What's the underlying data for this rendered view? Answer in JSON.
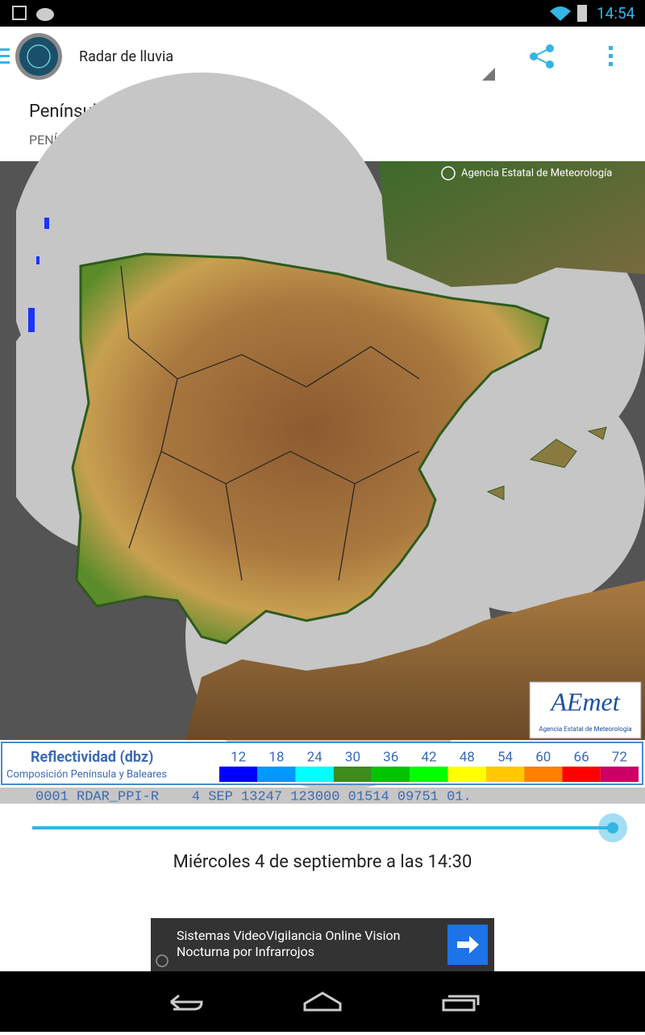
{
  "status_bar": {
    "time": "14:54"
  },
  "app_bar": {
    "title": "Radar de lluvia"
  },
  "header": {
    "title": "Península Ibérica",
    "subtitle": "PENÍNSULA IBÉRICA"
  },
  "map": {
    "attribution": "Agencia Estatal de Meteorología",
    "logo": {
      "name": "AEmet",
      "subtitle": "Agencia Estatal de Meteorología"
    },
    "legend": {
      "title": "Reflectividad (dbz)",
      "subtitle": "Composición Península y Baleares",
      "levels": [
        {
          "label": "12",
          "color": "#0000ff"
        },
        {
          "label": "18",
          "color": "#0099ff"
        },
        {
          "label": "24",
          "color": "#00ffff"
        },
        {
          "label": "30",
          "color": "#3c8c1e"
        },
        {
          "label": "36",
          "color": "#00c400"
        },
        {
          "label": "42",
          "color": "#00ff00"
        },
        {
          "label": "48",
          "color": "#ffff00"
        },
        {
          "label": "54",
          "color": "#ffc800"
        },
        {
          "label": "60",
          "color": "#ff8000"
        },
        {
          "label": "66",
          "color": "#ff0000"
        },
        {
          "label": "72",
          "color": "#cc0066"
        }
      ]
    },
    "ticker": "0001 RDAR_PPI-R    4 SEP 13247 123000 01514 09751 01."
  },
  "timestamp": "Miércoles 4 de septiembre a las 14:30",
  "ad": {
    "lines": [
      "Sistemas VideoVigilancia Online Vision",
      "Nocturna por Infrarrojos"
    ]
  }
}
